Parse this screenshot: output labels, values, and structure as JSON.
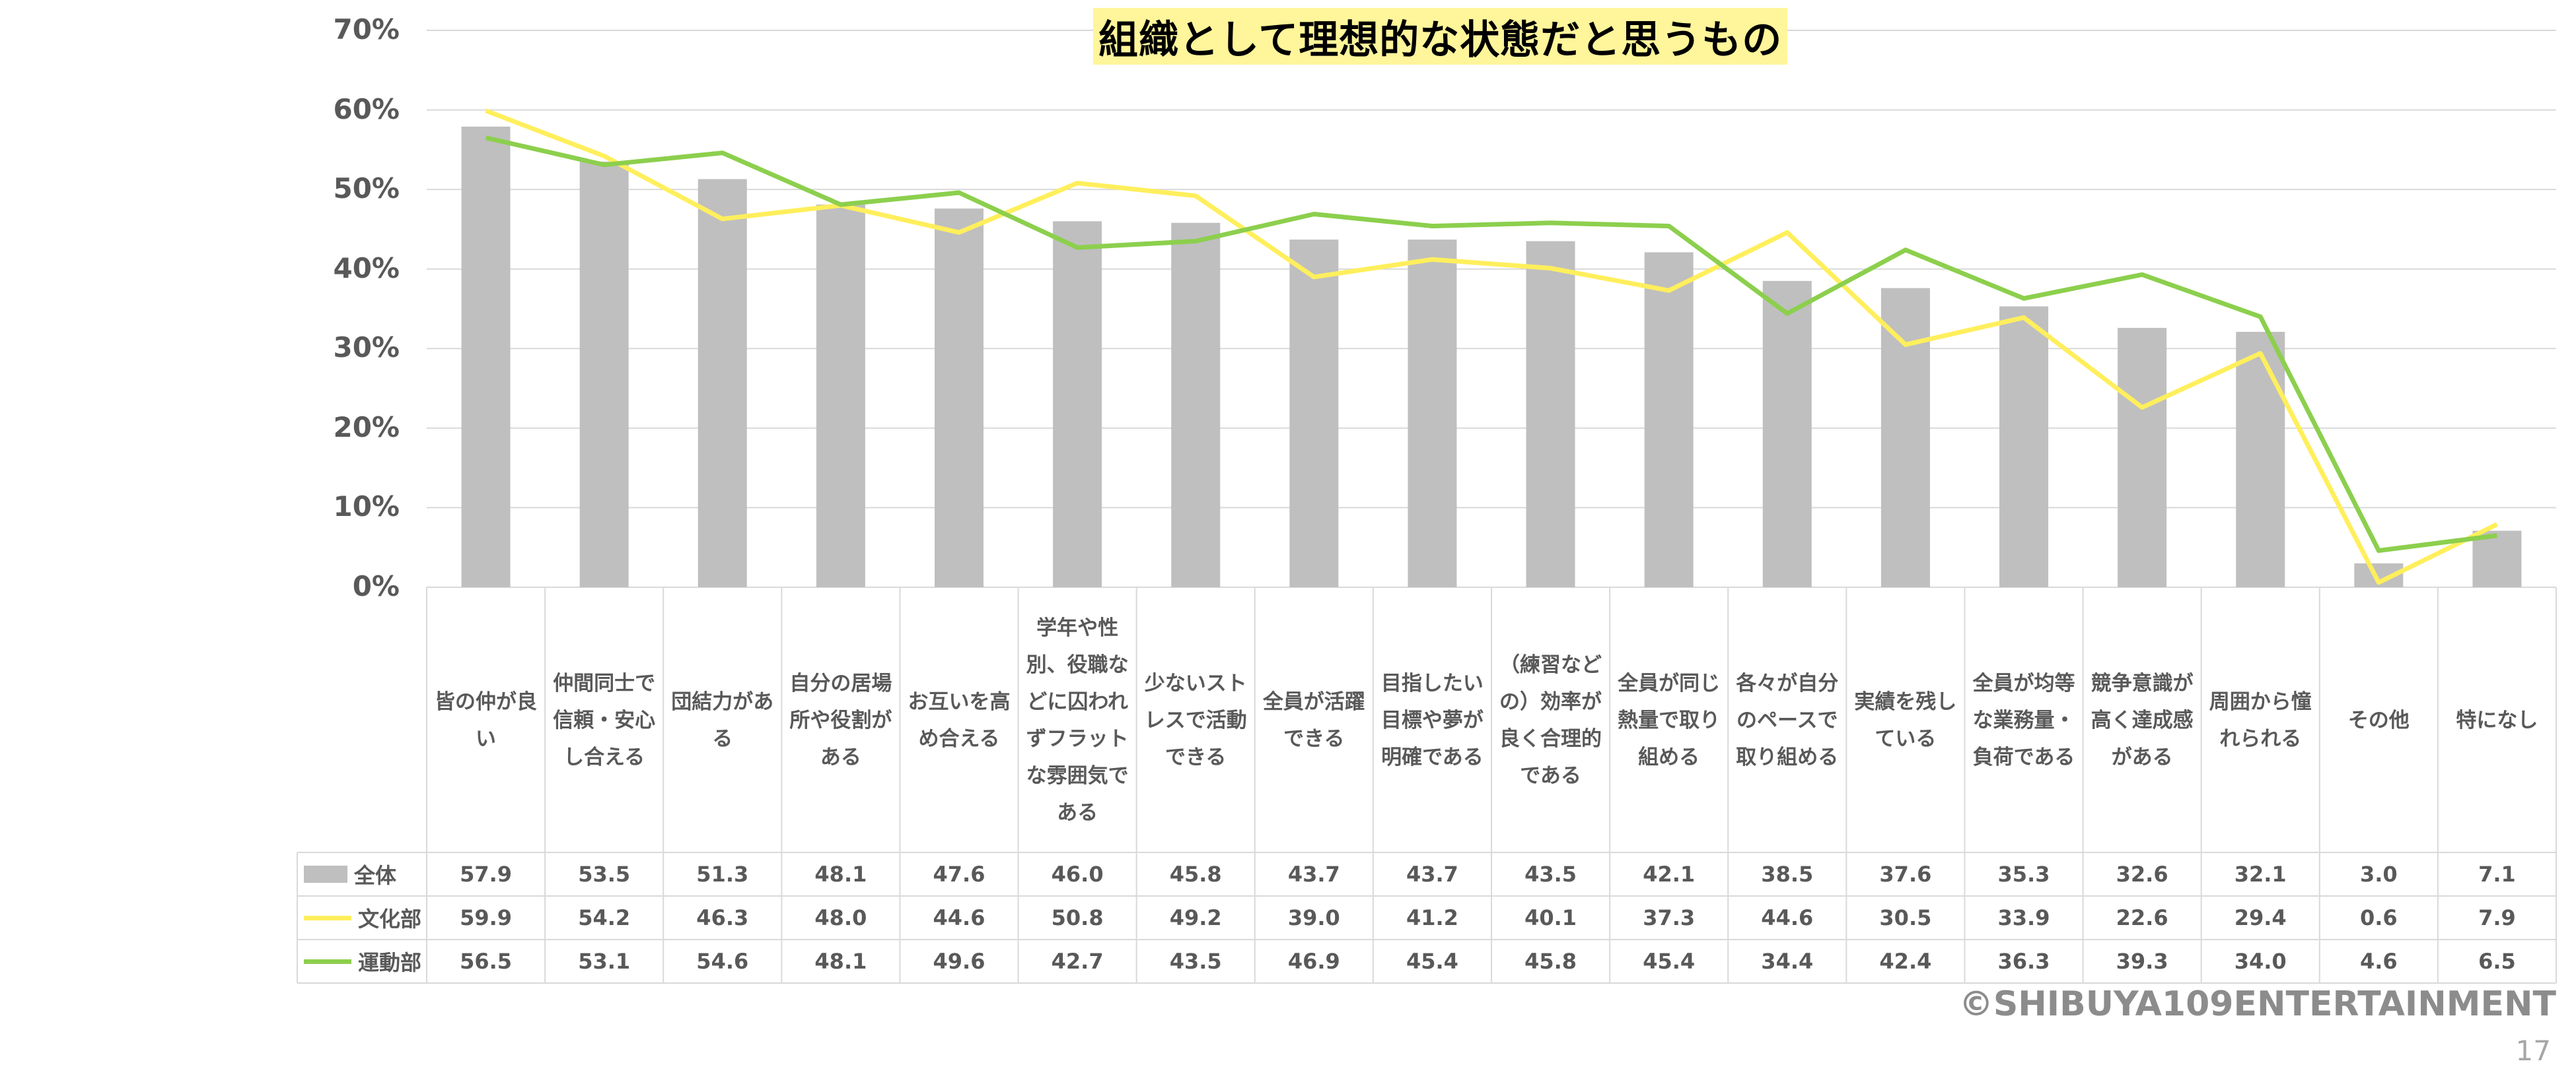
{
  "chart_data": {
    "type": "bar",
    "title": "組織として理想的な状態だと思うもの",
    "y_ticks": [
      "70%",
      "60%",
      "50%",
      "40%",
      "30%",
      "20%",
      "10%",
      "0%"
    ],
    "ylim": [
      0,
      70
    ],
    "y_unit": "%",
    "grid": true,
    "categories": [
      "皆の仲が良い",
      "仲間同士で信頼・安心し合える",
      "団結力がある",
      "自分の居場所や役割がある",
      "お互いを高め合える",
      "学年や性別、役職などに囚われずフラットな雰囲気である",
      "少ないストレスで活動できる",
      "全員が活躍できる",
      "目指したい目標や夢が明確である",
      "（練習などの）効率が良く合理的である",
      "全員が同じ熱量で取り組める",
      "各々が自分のペースで取り組める",
      "実績を残している",
      "全員が均等な業務量・負荷である",
      "競争意識が高く達成感がある",
      "周囲から憧れられる",
      "その他",
      "特になし"
    ],
    "series": [
      {
        "name": "全体",
        "type": "bar",
        "color": "#bfbfbf",
        "values": [
          57.9,
          53.5,
          51.3,
          48.1,
          47.6,
          46.0,
          45.8,
          43.7,
          43.7,
          43.5,
          42.1,
          38.5,
          37.6,
          35.3,
          32.6,
          32.1,
          3.0,
          7.1
        ],
        "labels": [
          "57.9",
          "53.5",
          "51.3",
          "48.1",
          "47.6",
          "46.0",
          "45.8",
          "43.7",
          "43.7",
          "43.5",
          "42.1",
          "38.5",
          "37.6",
          "35.3",
          "32.6",
          "32.1",
          "3.0",
          "7.1"
        ]
      },
      {
        "name": "文化部",
        "type": "line",
        "color": "#ffef5c",
        "values": [
          59.9,
          54.2,
          46.3,
          48.0,
          44.6,
          50.8,
          49.2,
          39.0,
          41.2,
          40.1,
          37.3,
          44.6,
          30.5,
          33.9,
          22.6,
          29.4,
          0.6,
          7.9
        ],
        "labels": [
          "59.9",
          "54.2",
          "46.3",
          "48.0",
          "44.6",
          "50.8",
          "49.2",
          "39.0",
          "41.2",
          "40.1",
          "37.3",
          "44.6",
          "30.5",
          "33.9",
          "22.6",
          "29.4",
          "0.6",
          "7.9"
        ]
      },
      {
        "name": "運動部",
        "type": "line",
        "color": "#8ccf4d",
        "values": [
          56.5,
          53.1,
          54.6,
          48.1,
          49.6,
          42.7,
          43.5,
          46.9,
          45.4,
          45.8,
          45.4,
          34.4,
          42.4,
          36.3,
          39.3,
          34.0,
          4.6,
          6.5
        ],
        "labels": [
          "56.5",
          "53.1",
          "54.6",
          "48.1",
          "49.6",
          "42.7",
          "43.5",
          "46.9",
          "45.4",
          "45.8",
          "45.4",
          "34.4",
          "42.4",
          "36.3",
          "39.3",
          "34.0",
          "4.6",
          "6.5"
        ]
      }
    ]
  },
  "footer": {
    "copyright": "©SHIBUYA109ENTERTAINMENT",
    "page_number": "17"
  },
  "colors": {
    "grid": "#d9d9d9",
    "table_border": "#d9d9d9",
    "title_highlight": "#fff59a"
  }
}
